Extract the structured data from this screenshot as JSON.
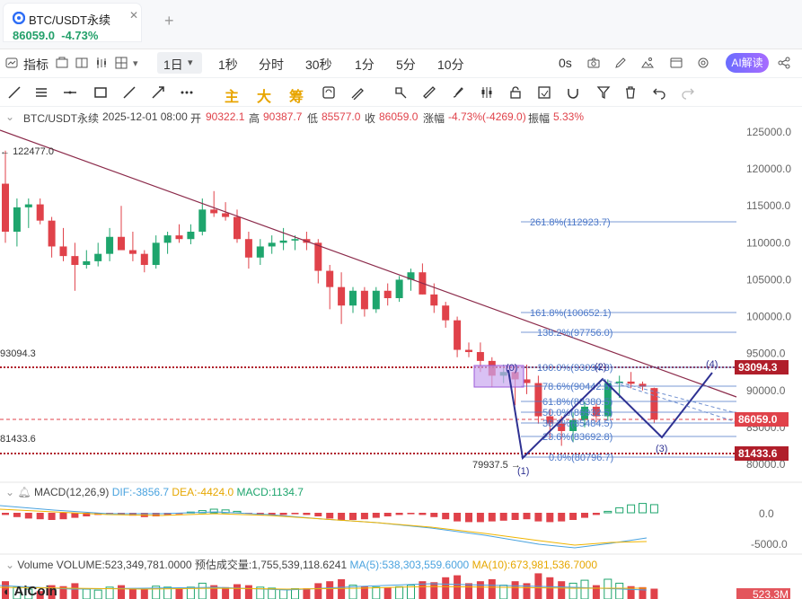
{
  "tab": {
    "symbol": "BTC/USDT永续",
    "price": "86059.0",
    "change": "-4.73%"
  },
  "toolbar": {
    "indicators_label": "指标",
    "timeframe": "1日",
    "intervals": [
      "1秒",
      "分时",
      "30秒",
      "1分",
      "5分",
      "10分"
    ],
    "os_label": "0s",
    "ai_label": "AI解读"
  },
  "draw_tools": {
    "zhu": "主",
    "da": "大",
    "chou": "筹"
  },
  "info": {
    "symbol": "BTC/USDT永续",
    "datetime": "2025-12-01 08:00",
    "open_label": "开",
    "open": "90322.1",
    "high_label": "高",
    "high": "90387.7",
    "low_label": "低",
    "low": "85577.0",
    "close_label": "收",
    "close": "86059.0",
    "chg_label": "涨幅",
    "chg": "-4.73%(-4269.0)",
    "amp_label": "振幅",
    "amp": "5.33%"
  },
  "yaxis": [
    "125000.0",
    "120000.0",
    "115000.0",
    "110000.0",
    "105000.0",
    "100000.0",
    "95000.0",
    "90000.0",
    "85000.0",
    "80000.0"
  ],
  "price_tags": {
    "upper": "93094.3",
    "current": "86059.0",
    "lower": "81433.6"
  },
  "left_labels": {
    "high_mark": "122477.0",
    "upper_line": "93094.3",
    "lower_line": "81433.6",
    "low_mark": "79937.5"
  },
  "fib": [
    {
      "label": "261.8%(112923.7)"
    },
    {
      "label": "161.8%(100652.1)"
    },
    {
      "label": "138.2%(97756.0)"
    },
    {
      "label": "100.0%(93094.3)"
    },
    {
      "label": "78.6%(90442.8)"
    },
    {
      "label": "61.8%(88380.5)"
    },
    {
      "label": "50.0%(86932.5)"
    },
    {
      "label": "38.2%(85484.5)"
    },
    {
      "label": "23.6%(83692.8)"
    },
    {
      "label": "0.0%(80796.7)"
    }
  ],
  "wave_labels": [
    "(0)",
    "(1)",
    "(2)",
    "(3)",
    "(4)"
  ],
  "macd": {
    "title": "MACD(12,26,9)",
    "dif": "DIF:-3856.7",
    "dea": "DEA:-4424.0",
    "macd": "MACD:1134.7",
    "axis": [
      "0.0",
      "-5000.0"
    ]
  },
  "volume": {
    "title": "Volume",
    "vol": "VOLUME:523,349,781.0000",
    "est": "预估成交量:1,755,539,118.6241",
    "ma5": "MA(5):538,303,559.6000",
    "ma10": "MA(10):673,981,536.7000",
    "tag": "523.3M"
  },
  "watermark": "AiCoin",
  "colors": {
    "up": "#1ea56d",
    "down": "#e0424a",
    "trend": "#8b2a4a",
    "fib": "#4c78c8",
    "wave": "#3a3a9a"
  }
}
